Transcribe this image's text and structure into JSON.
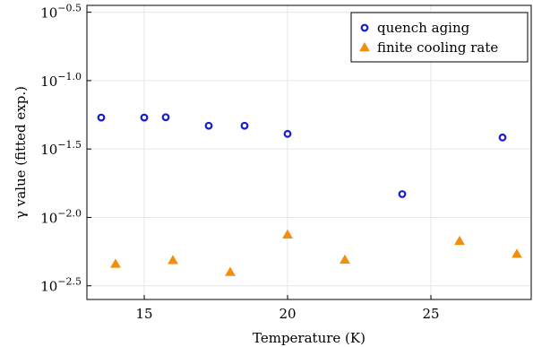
{
  "colors": {
    "quench": "#1a1ad6",
    "finite": "#f28e0c",
    "axis": "#000000",
    "grid": "#e6e6e6"
  },
  "chart_data": {
    "type": "scatter",
    "xlabel": "Temperature (K)",
    "ylabel": "γ value (fitted exp.)",
    "xlim": [
      13,
      28.5
    ],
    "ylim_log10": [
      -2.6,
      -0.45
    ],
    "y_scale": "log",
    "grid": true,
    "legend_position": "top-right",
    "x_ticks": [
      15,
      20,
      25
    ],
    "x_tick_labels": [
      "15",
      "20",
      "25"
    ],
    "y_ticks_log10": [
      -2.5,
      -2.0,
      -1.5,
      -1.0,
      -0.5
    ],
    "y_tick_labels": [
      {
        "base": "10",
        "exp": "−2.5"
      },
      {
        "base": "10",
        "exp": "−2.0"
      },
      {
        "base": "10",
        "exp": "−1.5"
      },
      {
        "base": "10",
        "exp": "−1.0"
      },
      {
        "base": "10",
        "exp": "−0.5"
      }
    ],
    "series": [
      {
        "name": "quench aging",
        "marker": "circle",
        "color": "#1a1ad6",
        "x": [
          13.5,
          15.0,
          15.75,
          17.25,
          18.5,
          20.0,
          24.0,
          27.5
        ],
        "y": [
          0.0537,
          0.0537,
          0.054,
          0.0468,
          0.0468,
          0.0408,
          0.0148,
          0.0384
        ]
      },
      {
        "name": "finite cooling rate",
        "marker": "triangle",
        "color": "#f28e0c",
        "x": [
          14.0,
          16.0,
          18.0,
          20.0,
          22.0,
          26.0,
          28.0
        ],
        "y": [
          0.00457,
          0.00486,
          0.00398,
          0.00748,
          0.0049,
          0.00671,
          0.0054
        ]
      }
    ]
  }
}
